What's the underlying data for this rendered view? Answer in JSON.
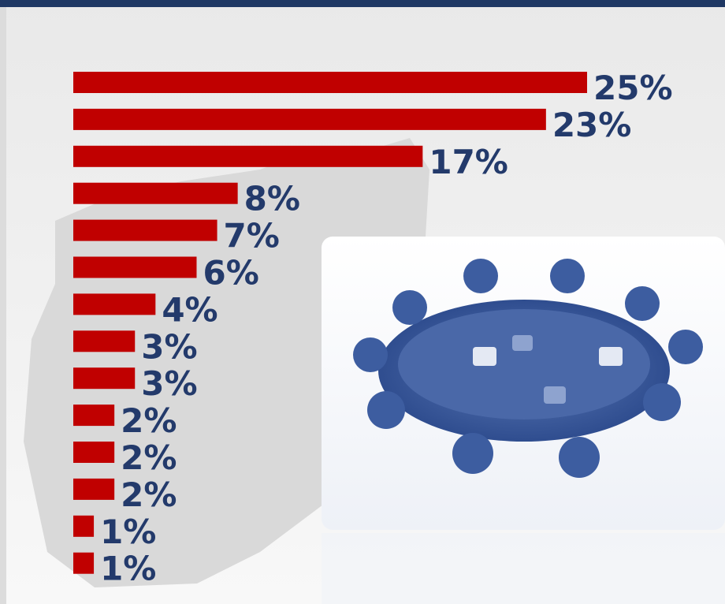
{
  "chart_data": {
    "type": "bar",
    "orientation": "horizontal",
    "categories": [
      null,
      null,
      null,
      null,
      null,
      null,
      null,
      null,
      null,
      null,
      null,
      null,
      null,
      null
    ],
    "values": [
      25,
      23,
      17,
      8,
      7,
      6,
      4,
      3,
      3,
      2,
      2,
      2,
      1,
      1
    ],
    "value_labels": [
      "25%",
      "23%",
      "17%",
      "8%",
      "7%",
      "6%",
      "4%",
      "3%",
      "3%",
      "2%",
      "2%",
      "2%",
      "1%",
      "1%"
    ],
    "color": "#c00000",
    "label_color": "#233a6b"
  }
}
